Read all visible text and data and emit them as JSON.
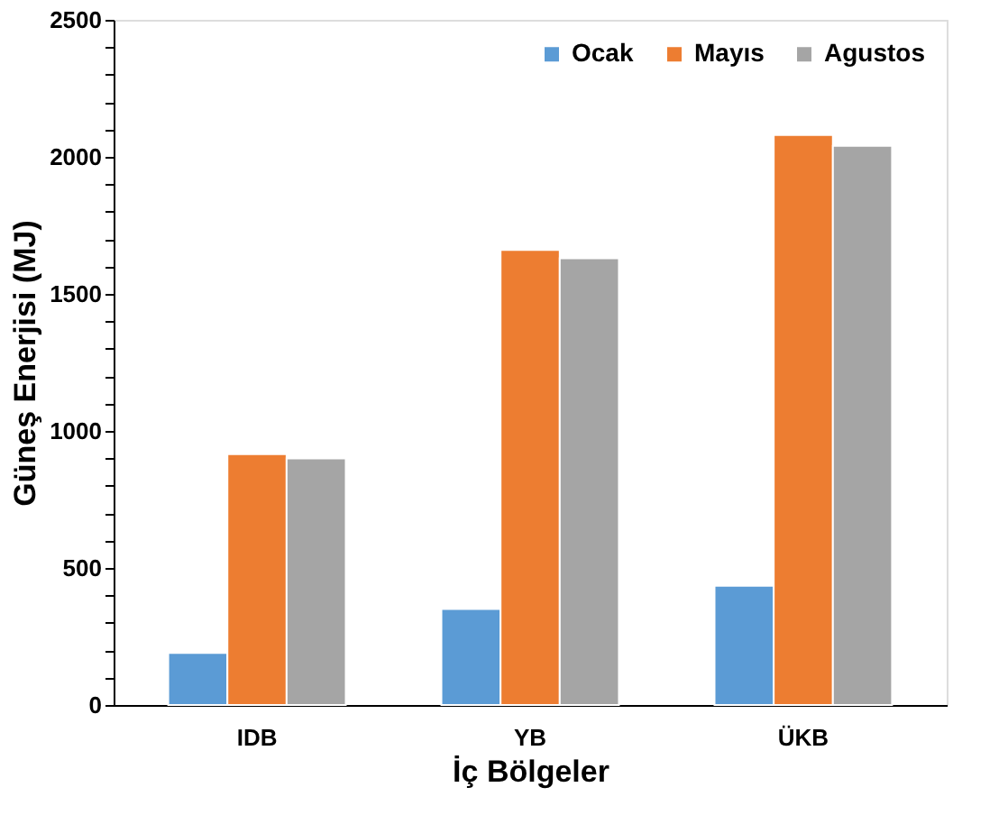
{
  "chart_data": {
    "type": "bar",
    "xlabel": "İç Bölgeler",
    "ylabel": "Güneş Enerjisi (MJ)",
    "categories": [
      "IDB",
      "YB",
      "ÜKB"
    ],
    "series": [
      {
        "name": "Ocak",
        "color": "#5b9bd5",
        "values": [
          190,
          350,
          435
        ]
      },
      {
        "name": "Mayıs",
        "color": "#ed7d31",
        "values": [
          915,
          1660,
          2080
        ]
      },
      {
        "name": "Agustos",
        "color": "#a5a5a5",
        "values": [
          900,
          1630,
          2040
        ]
      }
    ],
    "ylim": [
      0,
      2500
    ],
    "yticks": [
      0,
      {
        "value": 100,
        "label": null
      },
      {
        "value": 200,
        "label": null
      },
      {
        "value": 300,
        "label": null
      },
      {
        "value": 400,
        "label": null
      },
      500,
      {
        "value": 600,
        "label": null
      },
      {
        "value": 700,
        "label": null
      },
      {
        "value": 800,
        "label": null
      },
      {
        "value": 900,
        "label": null
      },
      1000,
      {
        "value": 1100,
        "label": null
      },
      {
        "value": 1200,
        "label": null
      },
      {
        "value": 1300,
        "label": null
      },
      {
        "value": 1400,
        "label": null
      },
      1500,
      {
        "value": 1600,
        "label": null
      },
      {
        "value": 1700,
        "label": null
      },
      {
        "value": 1800,
        "label": null
      },
      {
        "value": 1900,
        "label": null
      },
      2000,
      {
        "value": 2100,
        "label": null
      },
      {
        "value": 2200,
        "label": null
      },
      {
        "value": 2300,
        "label": null
      },
      {
        "value": 2400,
        "label": null
      },
      2500
    ],
    "grid": false,
    "legend": "top right"
  }
}
